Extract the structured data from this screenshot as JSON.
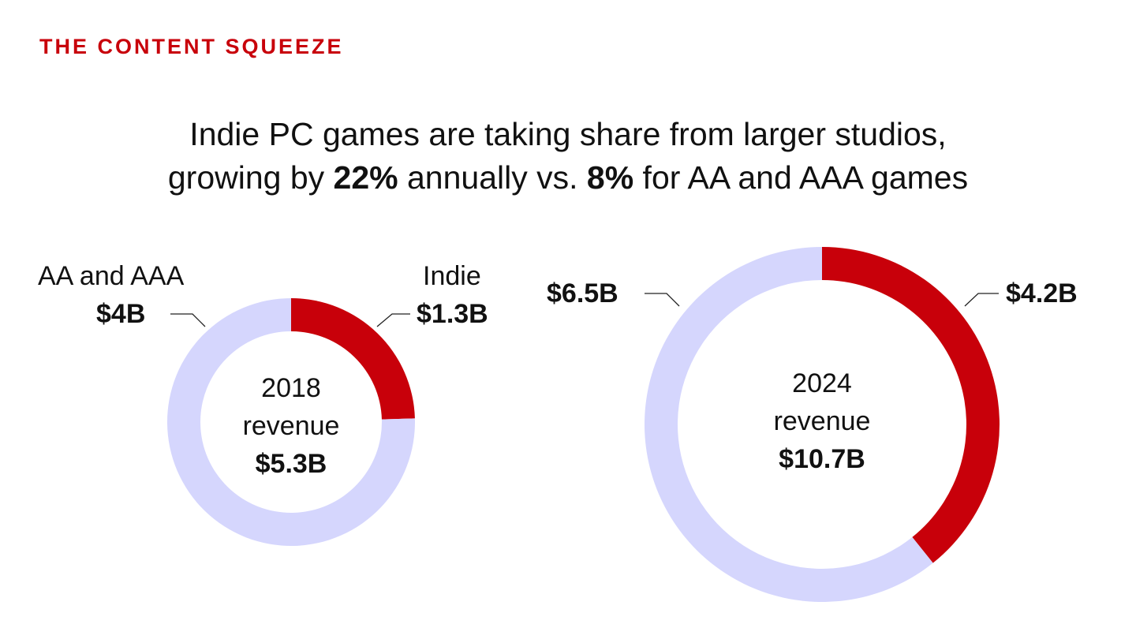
{
  "kicker": "THE CONTENT SQUEEZE",
  "headline": {
    "line1": "Indie PC games are taking share from larger studios,",
    "line2_a": "growing by ",
    "line2_b": "22%",
    "line2_c": " annually vs. ",
    "line2_d": "8%",
    "line2_e": " for AA and AAA games"
  },
  "colors": {
    "indie": "#c8000a",
    "aa_aaa": "#d5d6fd",
    "accent": "#c8000a"
  },
  "chart_data": [
    {
      "type": "pie",
      "title": "2018 revenue",
      "year": "2018",
      "caption": "revenue",
      "total_label": "$5.3B",
      "slices": [
        {
          "name": "Indie",
          "value": 1.3,
          "label": "$1.3B"
        },
        {
          "name": "AA and AAA",
          "value": 4.0,
          "label": "$4B"
        }
      ]
    },
    {
      "type": "pie",
      "title": "2024 revenue",
      "year": "2024",
      "caption": "revenue",
      "total_label": "$10.7B",
      "slices": [
        {
          "name": "Indie",
          "value": 4.2,
          "label": "$4.2B"
        },
        {
          "name": "AA and AAA",
          "value": 6.5,
          "label": "$6.5B"
        }
      ]
    }
  ]
}
